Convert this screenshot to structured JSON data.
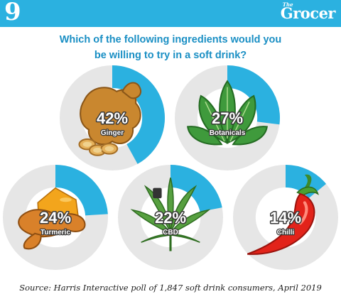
{
  "header": {
    "issue_number": "9",
    "brand_small": "The",
    "brand": "Grocer"
  },
  "question": {
    "line1": "Which of the following  ingredients would you",
    "line2": "be willing to try in a soft drink?"
  },
  "colors": {
    "accent": "#2bb1e0",
    "ring_track": "#e6e6e6",
    "question_text": "#1a8fc4"
  },
  "chart_data": {
    "type": "pie",
    "title": "Which of the following  ingredients would you be willing to try in a soft drink?",
    "categories": [
      "Ginger",
      "Botanicals",
      "Turmeric",
      "CBD",
      "Chilli"
    ],
    "values": [
      42,
      27,
      24,
      22,
      14
    ],
    "value_labels": [
      "42%",
      "27%",
      "24%",
      "22%",
      "14%"
    ],
    "icons": [
      "ginger-root-icon",
      "spinach-leaves-icon",
      "turmeric-root-icon",
      "cannabis-leaf-icon",
      "chilli-pepper-icon"
    ]
  },
  "source": "Source: Harris Interactive poll of 1,847 soft drink consumers, April 2019"
}
